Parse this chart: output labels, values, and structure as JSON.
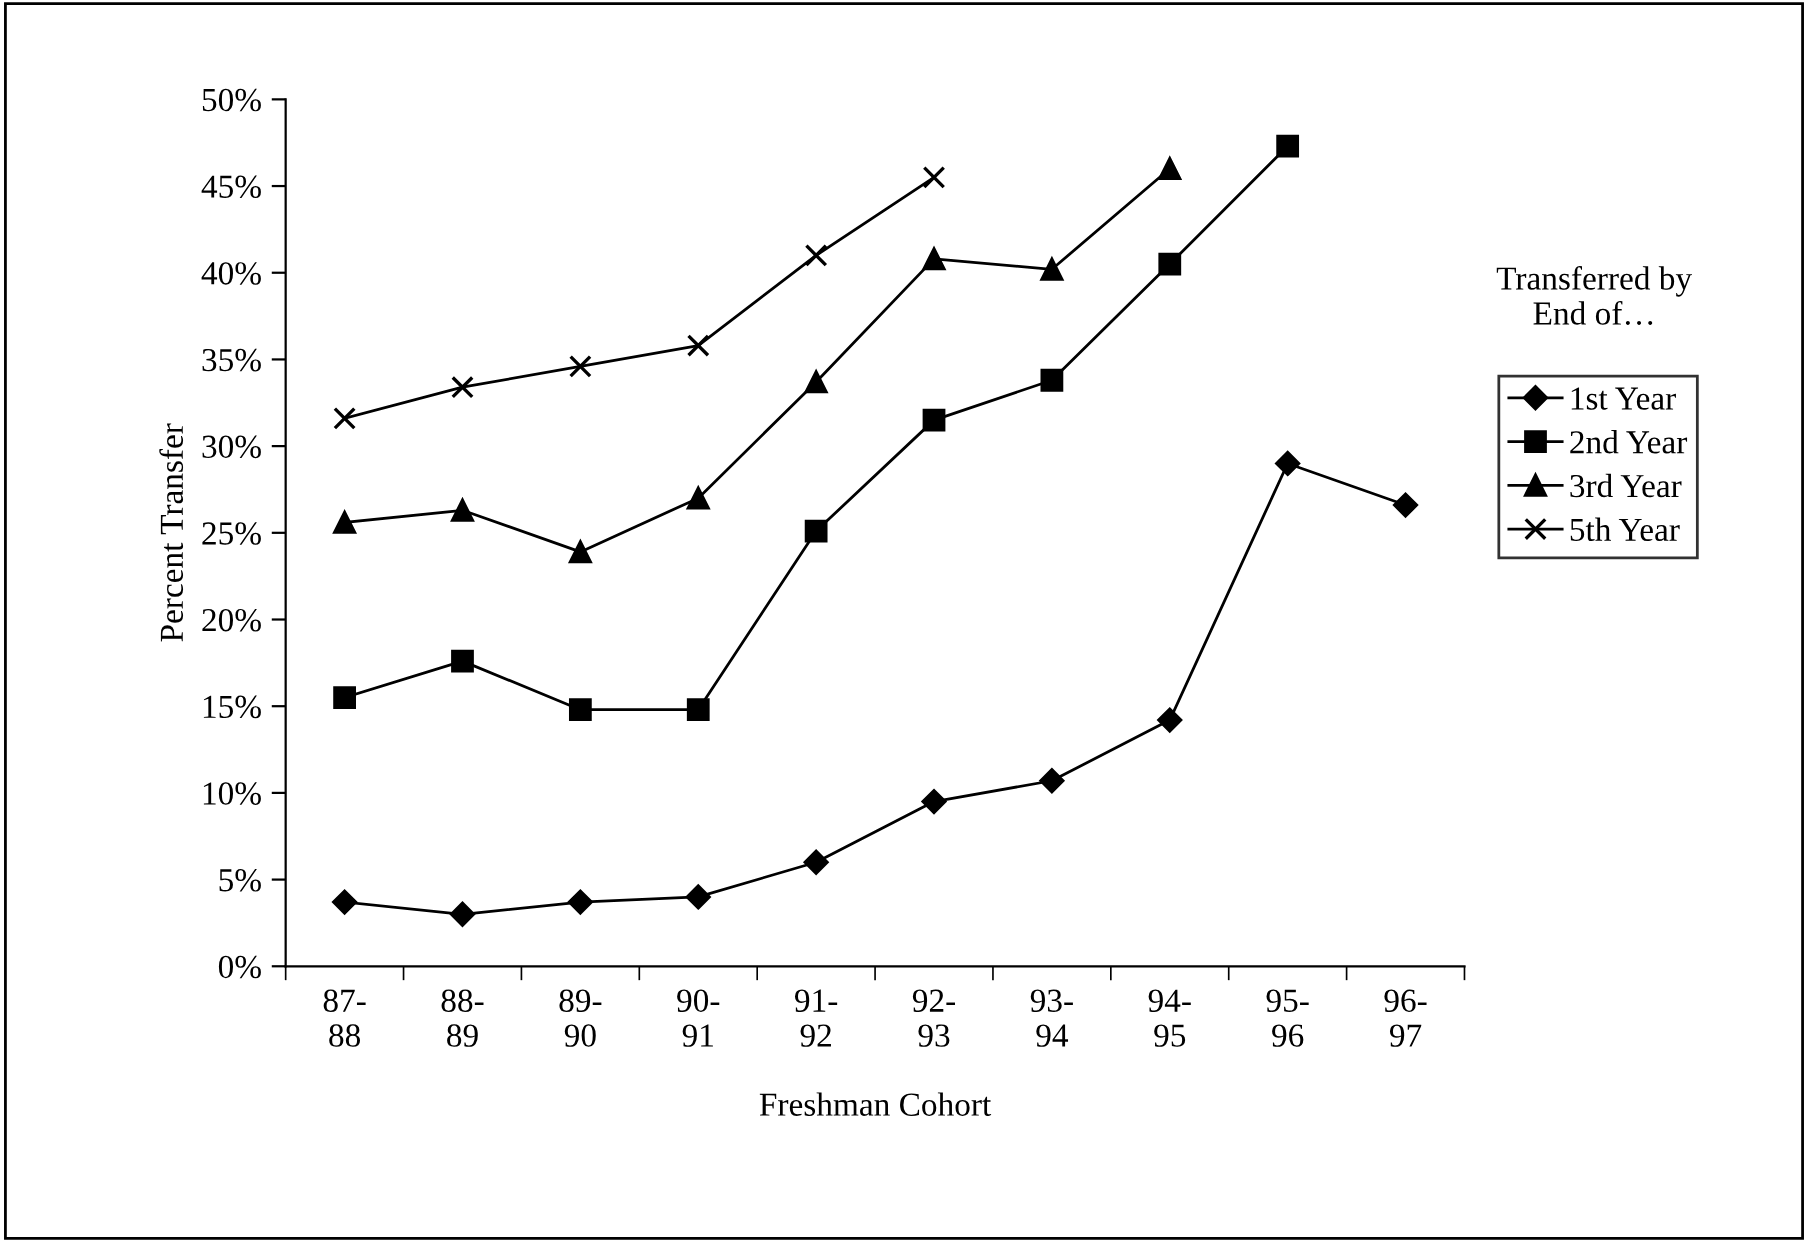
{
  "chart_data": {
    "type": "line",
    "xlabel": "Freshman Cohort",
    "ylabel": "Percent Transfer",
    "legend_title": "Transferred by\nEnd of…",
    "legend": "right",
    "grid": false,
    "categories": [
      "87-\n88",
      "88-\n89",
      "89-\n90",
      "90-\n91",
      "91-\n92",
      "92-\n93",
      "93-\n94",
      "94-\n95",
      "95-\n96",
      "96-\n97"
    ],
    "ylim": [
      0,
      50
    ],
    "yticks": [
      {
        "value": 0,
        "label": "0%"
      },
      {
        "value": 5,
        "label": "5%"
      },
      {
        "value": 10,
        "label": "10%"
      },
      {
        "value": 15,
        "label": "15%"
      },
      {
        "value": 20,
        "label": "20%"
      },
      {
        "value": 25,
        "label": "25%"
      },
      {
        "value": 30,
        "label": "30%"
      },
      {
        "value": 35,
        "label": "35%"
      },
      {
        "value": 40,
        "label": "40%"
      },
      {
        "value": 45,
        "label": "45%"
      },
      {
        "value": 50,
        "label": "50%"
      }
    ],
    "series": [
      {
        "name": "1st Year",
        "color": "#000000",
        "marker": "diamond",
        "values": [
          3.7,
          3.0,
          3.7,
          4.0,
          6.0,
          9.5,
          10.7,
          14.2,
          29.0,
          26.6
        ]
      },
      {
        "name": "2nd Year",
        "color": "#000000",
        "marker": "square",
        "values": [
          15.5,
          17.6,
          14.8,
          14.8,
          25.1,
          31.5,
          33.8,
          40.5,
          47.3,
          null
        ]
      },
      {
        "name": "3rd Year",
        "color": "#000000",
        "marker": "triangle",
        "values": [
          25.6,
          26.3,
          23.9,
          27.0,
          33.7,
          40.8,
          40.2,
          46.0,
          null,
          null
        ]
      },
      {
        "name": "5th Year",
        "color": "#000000",
        "marker": "cross",
        "values": [
          31.6,
          33.4,
          34.6,
          35.8,
          41.0,
          45.5,
          null,
          null,
          null,
          null
        ]
      }
    ]
  }
}
